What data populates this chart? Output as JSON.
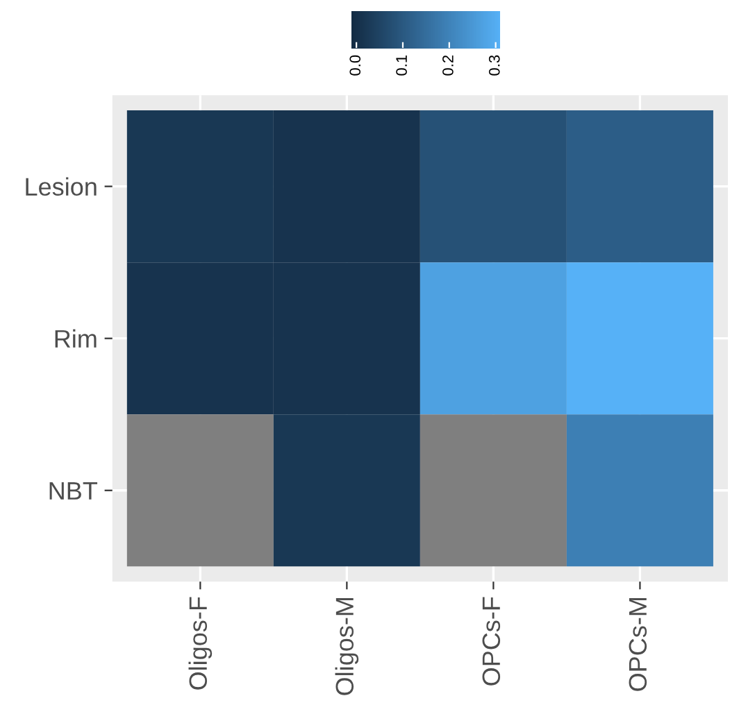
{
  "chart_data": {
    "type": "heatmap",
    "categories": [
      "Oligos-F",
      "Oligos-M",
      "OPCs-F",
      "OPCs-M"
    ],
    "y_categories": [
      "Lesion",
      "Rim",
      "NBT"
    ],
    "cells": [
      [
        0.02,
        0.01,
        0.08,
        0.11
      ],
      [
        0.01,
        0.01,
        0.27,
        0.31
      ],
      [
        null,
        0.02,
        null,
        0.19
      ]
    ],
    "colors": [
      "#132b43",
      "#56b1f7"
    ],
    "clim": [
      -0.01,
      0.31
    ],
    "cticks": [
      {
        "value": 0,
        "label": "0.0"
      },
      {
        "value": 0.1,
        "label": "0.1"
      },
      {
        "value": 0.2,
        "label": "0.2"
      },
      {
        "value": 0.3,
        "label": "0.3"
      }
    ],
    "grid": true
  }
}
